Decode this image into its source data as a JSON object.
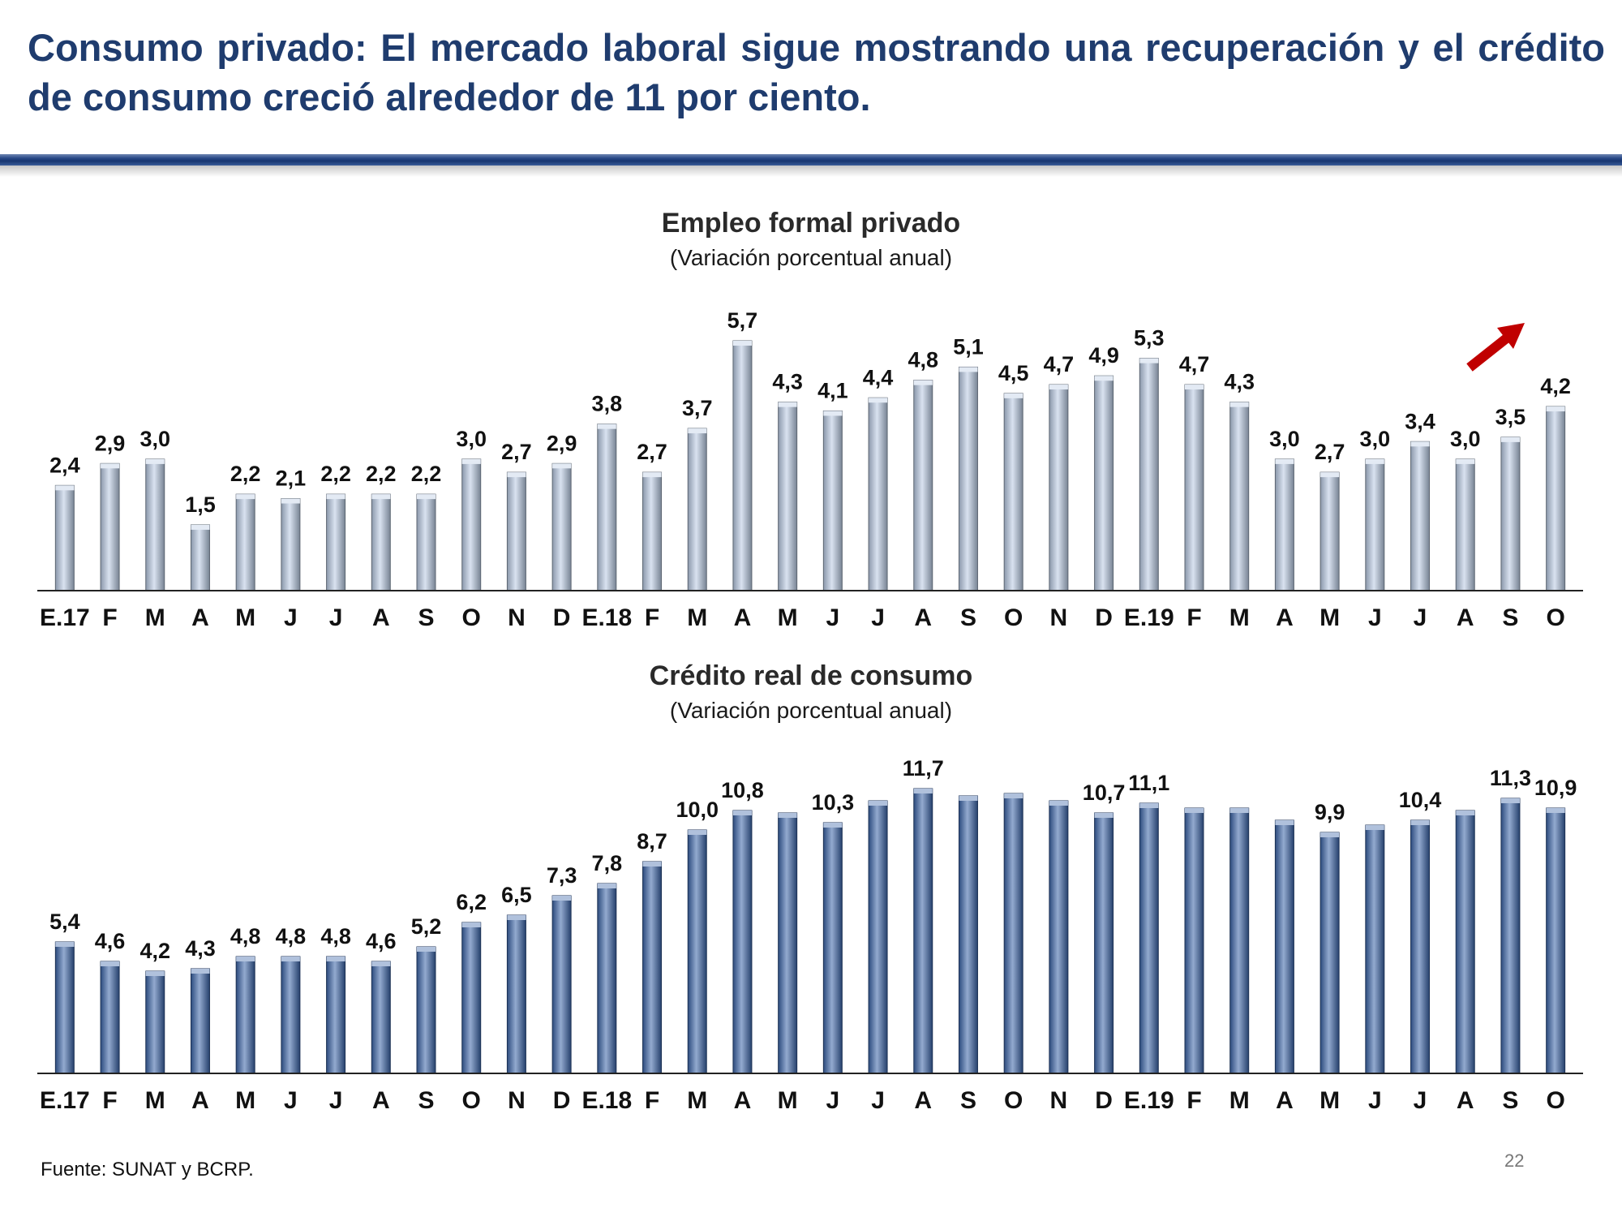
{
  "slide": {
    "title": "Consumo privado: El mercado laboral sigue mostrando una recuperación y el crédito de consumo creció alrededor de 11 por ciento.",
    "source": "Fuente: SUNAT y BCRP.",
    "page_number": "22"
  },
  "chart_data": [
    {
      "type": "bar",
      "title": "Empleo formal privado",
      "subtitle": "(Variación porcentual anual)",
      "categories": [
        "E.17",
        "F",
        "M",
        "A",
        "M",
        "J",
        "J",
        "A",
        "S",
        "O",
        "N",
        "D",
        "E.18",
        "F",
        "M",
        "A",
        "M",
        "J",
        "J",
        "A",
        "S",
        "O",
        "N",
        "D",
        "E.19",
        "F",
        "M",
        "A",
        "M",
        "J",
        "J",
        "A",
        "S",
        "O"
      ],
      "values": [
        2.4,
        2.9,
        3.0,
        1.5,
        2.2,
        2.1,
        2.2,
        2.2,
        2.2,
        3.0,
        2.7,
        2.9,
        3.8,
        2.7,
        3.7,
        5.7,
        4.3,
        4.1,
        4.4,
        4.8,
        5.1,
        4.5,
        4.7,
        4.9,
        5.3,
        4.7,
        4.3,
        3.0,
        2.7,
        3.0,
        3.4,
        3.0,
        3.5,
        4.2
      ],
      "labels": [
        "2,4",
        "2,9",
        "3,0",
        "1,5",
        "2,2",
        "2,1",
        "2,2",
        "2,2",
        "2,2",
        "3,0",
        "2,7",
        "2,9",
        "3,8",
        "2,7",
        "3,7",
        "5,7",
        "4,3",
        "4,1",
        "4,4",
        "4,8",
        "5,1",
        "4,5",
        "4,7",
        "4,9",
        "5,3",
        "4,7",
        "4,3",
        "3,0",
        "2,7",
        "3,0",
        "3,4",
        "3,0",
        "3,5",
        "4,2"
      ],
      "ylim": [
        0,
        6.2
      ],
      "bar_color": "#b9cbe4",
      "annotation": "red-arrow-up",
      "annotation_color": "#c00000"
    },
    {
      "type": "bar",
      "title": "Crédito real de consumo",
      "subtitle": "(Variación porcentual anual)",
      "categories": [
        "E.17",
        "F",
        "M",
        "A",
        "M",
        "J",
        "J",
        "A",
        "S",
        "O",
        "N",
        "D",
        "E.18",
        "F",
        "M",
        "A",
        "M",
        "J",
        "J",
        "A",
        "S",
        "O",
        "N",
        "D",
        "E.19",
        "F",
        "M",
        "A",
        "M",
        "J",
        "J",
        "A",
        "S",
        "O"
      ],
      "values": [
        5.4,
        4.6,
        4.2,
        4.3,
        4.8,
        4.8,
        4.8,
        4.6,
        5.2,
        6.2,
        6.5,
        7.3,
        7.8,
        8.7,
        10.0,
        10.8,
        10.7,
        10.3,
        11.2,
        11.7,
        11.4,
        11.5,
        11.2,
        10.7,
        11.1,
        10.9,
        10.9,
        10.4,
        9.9,
        10.2,
        10.4,
        10.8,
        11.3,
        10.9
      ],
      "labels": [
        "5,4",
        "4,6",
        "4,2",
        "4,3",
        "4,8",
        "4,8",
        "4,8",
        "4,6",
        "5,2",
        "6,2",
        "6,5",
        "7,3",
        "7,8",
        "8,7",
        "10,0",
        "10,8",
        "",
        "10,3",
        "",
        "11,7",
        "",
        "",
        "",
        "10,7",
        "11,1",
        "",
        "",
        "",
        "9,9",
        "",
        "10,4",
        "",
        "11,3",
        "10,9"
      ],
      "ylim": [
        0,
        12.4
      ],
      "bar_color": "#3a64a8"
    }
  ]
}
